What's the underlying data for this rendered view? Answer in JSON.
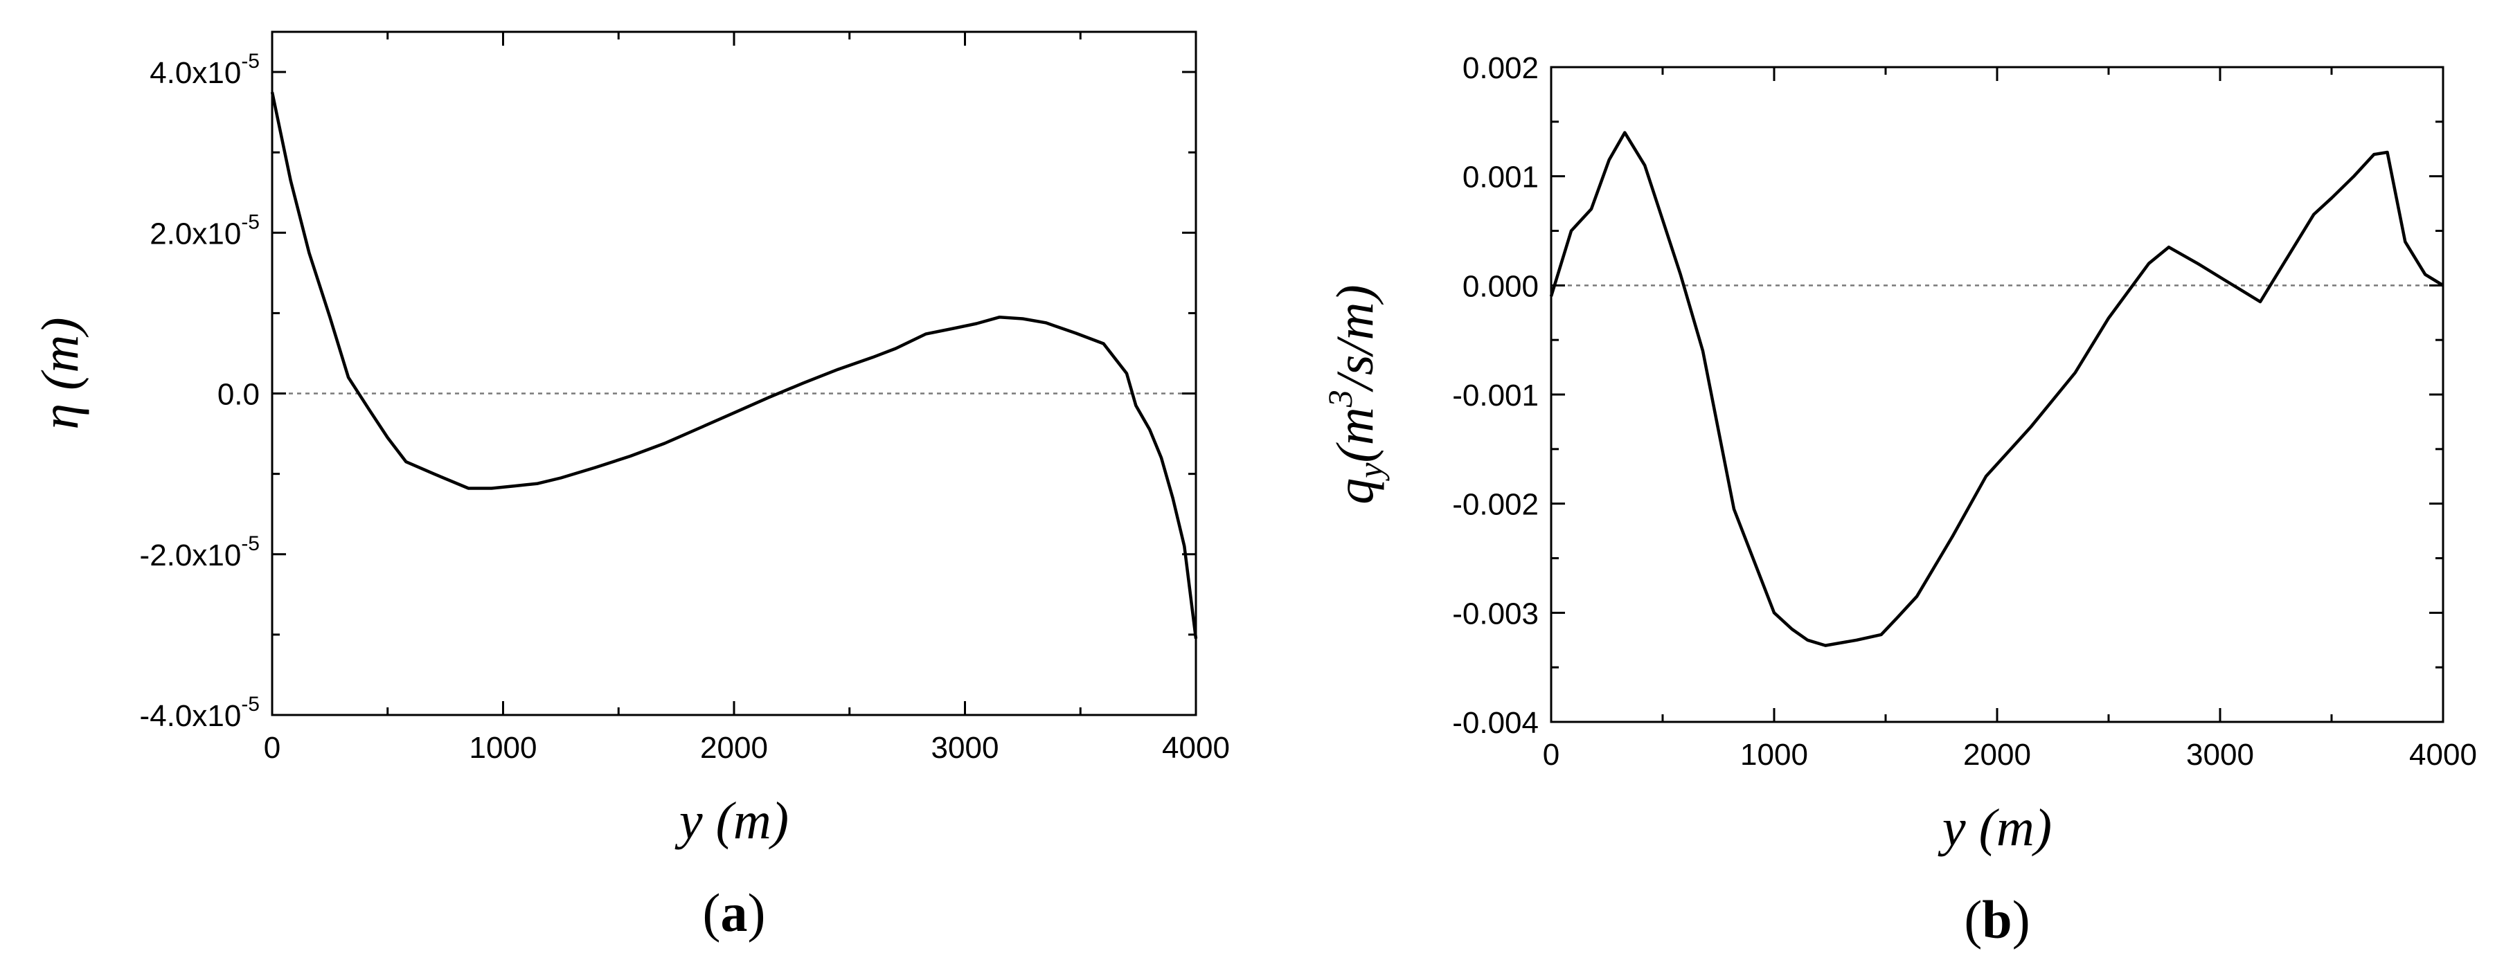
{
  "chart_data": [
    {
      "type": "line",
      "panel_label": "a",
      "xlabel": "y (m)",
      "ylabel": "η (m)",
      "xlim": [
        0,
        4000
      ],
      "ylim": [
        -4e-05,
        4.5e-05
      ],
      "x_ticks": [
        0,
        1000,
        2000,
        3000,
        4000
      ],
      "x_tick_labels": [
        "0",
        "1000",
        "2000",
        "3000",
        "4000"
      ],
      "y_ticks": [
        4e-05,
        2e-05,
        0,
        -2e-05,
        -4e-05
      ],
      "y_tick_labels": [
        {
          "mantissa": "4.0x10",
          "exp": "-5"
        },
        {
          "mantissa": "2.0x10",
          "exp": "-5"
        },
        {
          "mantissa": "0.0",
          "exp": ""
        },
        {
          "mantissa": "-2.0x10",
          "exp": "-5"
        },
        {
          "mantissa": "-4.0x10",
          "exp": "-5"
        }
      ],
      "reference_line_y": 0,
      "series": [
        {
          "x": [
            0,
            80,
            160,
            250,
            330,
            420,
            500,
            580,
            700,
            850,
            950,
            1050,
            1150,
            1250,
            1400,
            1550,
            1700,
            1850,
            2000,
            2150,
            2300,
            2450,
            2600,
            2700,
            2830,
            2950,
            3050,
            3150,
            3250,
            3350,
            3480,
            3600,
            3700,
            3740,
            3800,
            3850,
            3900,
            3950,
            4000
          ],
          "y": [
            3.75e-05,
            2.65e-05,
            1.75e-05,
            9.5e-06,
            2e-06,
            -2e-06,
            -5.5e-06,
            -8.5e-06,
            -1e-05,
            -1.18e-05,
            -1.18e-05,
            -1.15e-05,
            -1.12e-05,
            -1.05e-05,
            -9.2e-06,
            -7.8e-06,
            -6.2e-06,
            -4.3e-06,
            -2.4e-06,
            -5e-07,
            1.3e-06,
            3e-06,
            4.5e-06,
            5.6e-06,
            7.4e-06,
            8.1e-06,
            8.7e-06,
            9.5e-06,
            9.3e-06,
            8.8e-06,
            7.5e-06,
            6.2e-06,
            2.5e-06,
            -1.5e-06,
            -4.5e-06,
            -8e-06,
            -1.3e-05,
            -1.9e-05,
            -3.05e-05
          ]
        }
      ]
    },
    {
      "type": "line",
      "panel_label": "b",
      "xlabel": "y (m)",
      "ylabel": "q_y (m^3/s/m)",
      "ylabel_parts": {
        "q": "q",
        "sub": "y",
        "unit_open": "(m",
        "exp": "3",
        "unit_close": "/s/m)"
      },
      "xlim": [
        0,
        4000
      ],
      "ylim": [
        -0.004,
        0.002
      ],
      "x_ticks": [
        0,
        1000,
        2000,
        3000,
        4000
      ],
      "x_tick_labels": [
        "0",
        "1000",
        "2000",
        "3000",
        "4000"
      ],
      "y_ticks": [
        0.002,
        0.001,
        0,
        -0.001,
        -0.002,
        -0.003,
        -0.004
      ],
      "y_tick_labels": [
        "0.002",
        "0.001",
        "0.000",
        "-0.001",
        "-0.002",
        "-0.003",
        "-0.004"
      ],
      "reference_line_y": 0,
      "series": [
        {
          "x": [
            0,
            90,
            180,
            260,
            330,
            420,
            500,
            580,
            680,
            820,
            1000,
            1080,
            1150,
            1230,
            1370,
            1480,
            1550,
            1640,
            1800,
            1950,
            2150,
            2350,
            2500,
            2680,
            2770,
            2900,
            3020,
            3100,
            3180,
            3300,
            3420,
            3500,
            3600,
            3690,
            3750,
            3830,
            3920,
            4000
          ],
          "y": [
            -0.0001,
            0.0005,
            0.0007,
            0.00115,
            0.0014,
            0.0011,
            0.0006,
            0.0001,
            -0.0006,
            -0.00205,
            -0.003,
            -0.00315,
            -0.00325,
            -0.0033,
            -0.00325,
            -0.0032,
            -0.00305,
            -0.00285,
            -0.0023,
            -0.00175,
            -0.0013,
            -0.0008,
            -0.0003,
            0.0002,
            0.00035,
            0.0002,
            5e-05,
            -5e-05,
            -0.00015,
            0.00025,
            0.00065,
            0.0008,
            0.001,
            0.0012,
            0.00122,
            0.0004,
            0.0001,
            0
          ]
        }
      ]
    }
  ]
}
